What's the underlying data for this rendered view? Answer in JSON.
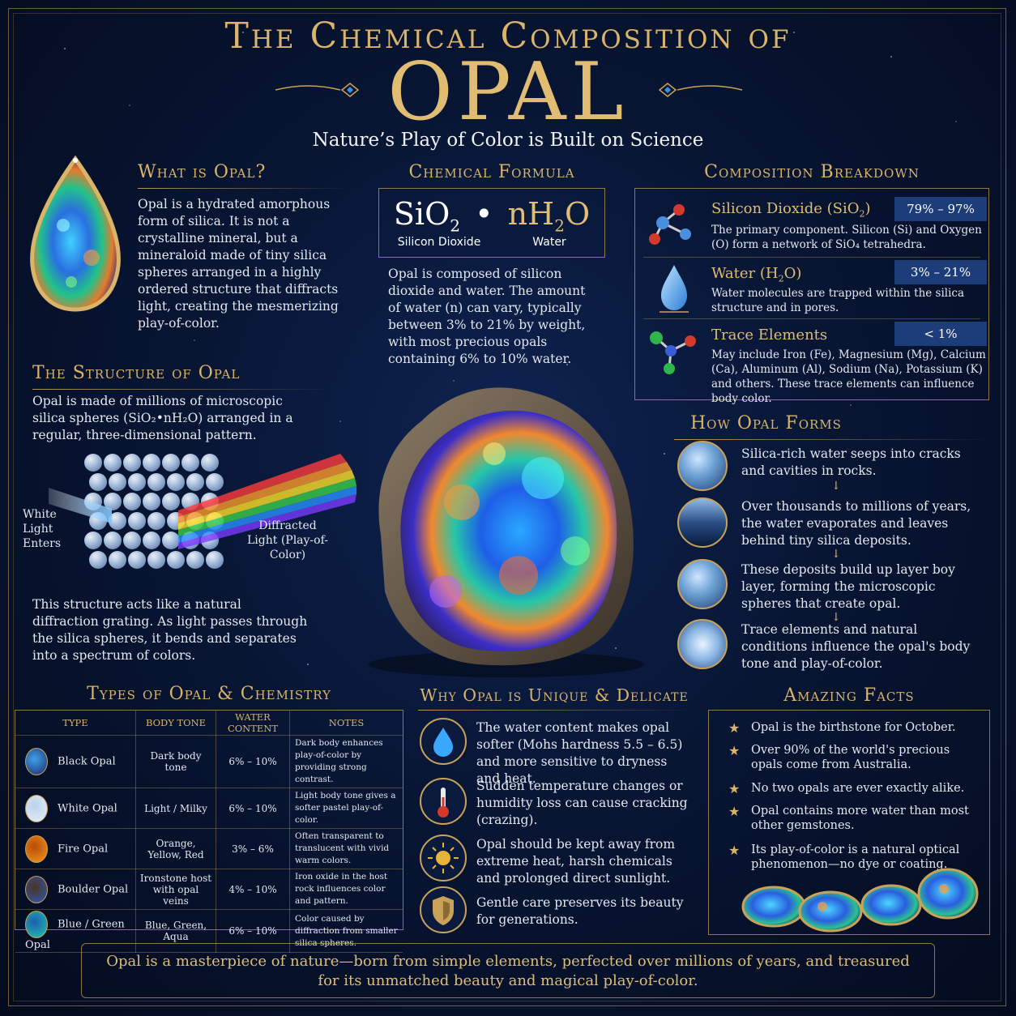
{
  "header": {
    "title_line1": "The Chemical Composition of",
    "title_line2": "OPAL",
    "subtitle": "Nature’s Play of Color is Built on Science"
  },
  "what_is": {
    "heading": "What is Opal?",
    "text": "Opal is a hydrated amorphous form of silica. It is not a crystalline mineral, but a mineraloid made of tiny silica spheres arranged in a highly ordered structure that diffracts light, creating the mesmerizing play-of-color."
  },
  "formula": {
    "heading": "Chemical Formula",
    "sio": "SiO",
    "sub2": "2",
    "dot": "•",
    "nh": "nH",
    "sub2b": "2",
    "o": "O",
    "label_left": "Silicon Dioxide",
    "label_right": "Water",
    "text": "Opal is composed of silicon dioxide and water. The amount of water (n) can vary, typically between 3% to 21% by weight, with most precious opals containing 6% to 10% water."
  },
  "composition": {
    "heading": "Composition Breakdown",
    "items": [
      {
        "name": "Silicon Dioxide (SiO",
        "name_sub": "2",
        "name_end": ")",
        "value": "79% – 97%",
        "text": "The primary component. Silicon (Si) and Oxygen (O) form a network of SiO₄ tetrahedra."
      },
      {
        "name": "Water (H",
        "name_sub": "2",
        "name_end": "O)",
        "value": "3% – 21%",
        "text": "Water molecules are trapped within the silica structure and in pores."
      },
      {
        "name": "Trace Elements",
        "name_sub": "",
        "name_end": "",
        "value": "< 1%",
        "text": "May include Iron (Fe), Magnesium (Mg), Calcium (Ca), Aluminum (Al), Sodium (Na), Potassium (K) and others. These trace elements can influence body color."
      }
    ]
  },
  "structure": {
    "heading": "The Structure of Opal",
    "text": "Opal is made of millions of microscopic silica spheres (SiO₂•nH₂O) arranged in a regular, three-dimensional pattern.",
    "label_in": "White Light Enters",
    "label_out": "Diffracted Light (Play-of-Color)",
    "text2": "This structure acts like a natural diffraction grating. As light passes through the silica spheres, it bends and separates into a spectrum of colors."
  },
  "forms": {
    "heading": "How Opal Forms",
    "steps": [
      "Silica-rich water seeps into cracks and cavities in rocks.",
      "Over thousands to millions of years, the water evaporates and leaves behind tiny silica deposits.",
      "These deposits build up layer boy layer, forming the microscopic spheres that create opal.",
      "Trace elements and natural conditions influence the opal's body tone and play-of-color."
    ]
  },
  "types": {
    "heading": "Types of Opal & Chemistry",
    "columns": [
      "TYPE",
      "BODY TONE",
      "WATER CONTENT",
      "NOTES"
    ],
    "rows": [
      {
        "type": "Black Opal",
        "tone": "Dark body tone",
        "water": "6% – 10%",
        "notes": "Dark body enhances play-of-color by providing strong contrast.",
        "color1": "#1d2b6b",
        "color2": "#3fa0e8"
      },
      {
        "type": "White Opal",
        "tone": "Light / Milky",
        "water": "6% – 10%",
        "notes": "Light body tone gives a softer pastel play-of-color.",
        "color1": "#e8eef5",
        "color2": "#b9d3ea"
      },
      {
        "type": "Fire Opal",
        "tone": "Orange, Yellow, Red",
        "water": "3% – 6%",
        "notes": "Often transparent to translucent with vivid warm colors.",
        "color1": "#f29a1c",
        "color2": "#b94a08"
      },
      {
        "type": "Boulder Opal",
        "tone": "Ironstone host with opal veins",
        "water": "4% – 10%",
        "notes": "Iron oxide in the host rock influences color and pattern.",
        "color1": "#2d58b8",
        "color2": "#4a3424"
      },
      {
        "type": "Blue / Green Opal",
        "tone": "Blue, Green, Aqua",
        "water": "6% – 10%",
        "notes": "Color caused by diffraction from smaller silica spheres.",
        "color1": "#23c4b0",
        "color2": "#1b5fae"
      }
    ]
  },
  "unique": {
    "heading": "Why Opal is Unique & Delicate",
    "items": [
      {
        "icon": "water-drop-icon",
        "text": "The water content makes opal softer (Mohs hardness 5.5 – 6.5) and more sensitive to dryness and heat."
      },
      {
        "icon": "thermometer-icon",
        "text": "Sudden temperature changes or humidity loss can cause cracking (crazing)."
      },
      {
        "icon": "sun-icon",
        "text": "Opal should be kept away from extreme heat, harsh chemicals and prolonged direct sunlight."
      },
      {
        "icon": "shield-icon",
        "text": "Gentle care preserves its beauty for generations."
      }
    ]
  },
  "facts": {
    "heading": "Amazing Facts",
    "items": [
      "Opal is the birthstone for October.",
      "Over 90% of the world's precious opals come from Australia.",
      "No two opals are ever exactly alike.",
      "Opal contains more water than most other gemstones.",
      "Its play-of-color is a natural optical phenomenon—no dye or coating."
    ]
  },
  "footer": {
    "text": "Opal is a masterpiece of nature—born from simple elements, perfected over millions of years, and treasured for its unmatched beauty and magical play-of-color."
  },
  "colors": {
    "gold": "#d9b46a",
    "navy": "#081634",
    "pill": "#1c3d7a"
  }
}
